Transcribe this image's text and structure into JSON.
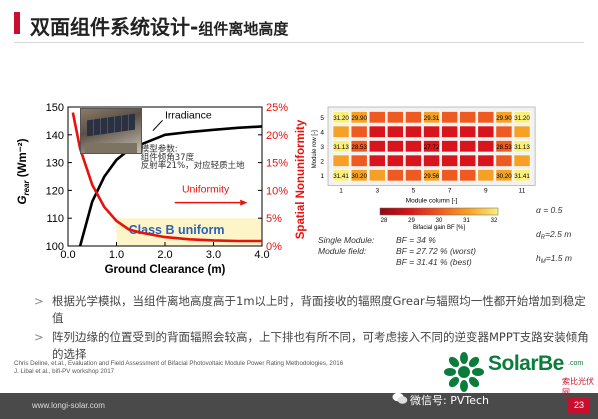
{
  "slide": {
    "title_main": "双面组件系统设计-",
    "title_sub": "组件离地高度",
    "footer_url": "www.longi-solar.com",
    "page_number": "23",
    "accent_color": "#c8102e"
  },
  "left_chart": {
    "y_label": "G",
    "y_label_sub": "rear",
    "y_label_unit": " (Wm⁻²)",
    "y2_label": "Spatial Nonuniformity",
    "x_label": "Ground Clearance (m)",
    "y_ticks": [
      "100",
      "110",
      "120",
      "130",
      "140",
      "150"
    ],
    "y2_ticks": [
      "0%",
      "5%",
      "10%",
      "15%",
      "20%",
      "25%"
    ],
    "x_ticks": [
      "0.0",
      "1.0",
      "2.0",
      "3.0",
      "4.0"
    ],
    "irradiance_label": "Irradiance",
    "uniformity_label": "Uniformity",
    "class_label": "Class B uniform",
    "param_title": "模型参数:",
    "param_1": "组件倾角37度",
    "param_2": "反射率21%，对应轻质土地",
    "irradiance_color": "#000000",
    "uniformity_color": "#e8120c",
    "class_band_color": "#fdf5c8"
  },
  "chart_data": [
    {
      "type": "line",
      "title": "",
      "xlabel": "Ground Clearance (m)",
      "ylabel": "Grear (Wm⁻²)",
      "y2label": "Spatial Nonuniformity",
      "xlim": [
        0,
        4
      ],
      "ylim": [
        100,
        150
      ],
      "y2lim": [
        0,
        25
      ],
      "series": [
        {
          "name": "Irradiance",
          "axis": "left",
          "x": [
            0.25,
            0.5,
            0.75,
            1.0,
            1.25,
            1.5,
            2.0,
            2.5,
            3.0,
            3.5,
            4.0
          ],
          "y": [
            100.0,
            116.0,
            125.0,
            131.0,
            134.5,
            136.5,
            140.0,
            141.0,
            141.8,
            142.5,
            143.0
          ]
        },
        {
          "name": "Uniformity",
          "axis": "right",
          "x": [
            0.1,
            0.25,
            0.5,
            0.75,
            1.0,
            1.25,
            1.5,
            2.0,
            2.5,
            3.0,
            3.5,
            4.0
          ],
          "y": [
            24.0,
            17.5,
            11.0,
            7.0,
            4.5,
            3.0,
            2.4,
            1.6,
            1.2,
            1.0,
            0.9,
            0.9
          ]
        }
      ]
    },
    {
      "type": "heatmap",
      "title": "",
      "xlabel": "Module column [-]",
      "ylabel": "Module row [-]",
      "x_ticks": [
        "1",
        "3",
        "5",
        "7",
        "9",
        "11"
      ],
      "rows": [
        "5",
        "4",
        "3",
        "2",
        "1"
      ],
      "colorbar_label": "Bifacial gain BF [%]",
      "colorbar_ticks": [
        "28",
        "29",
        "30",
        "31",
        "32"
      ],
      "values": [
        [
          31.2,
          29.9,
          29.0,
          28.6,
          28.6,
          29.31,
          28.6,
          28.6,
          29.0,
          29.9,
          31.2
        ],
        [
          30.0,
          28.6,
          28.1,
          27.9,
          27.9,
          27.9,
          27.9,
          27.9,
          28.1,
          28.6,
          30.0
        ],
        [
          31.13,
          28.53,
          27.9,
          27.8,
          27.8,
          27.72,
          27.8,
          27.8,
          27.9,
          28.53,
          31.13
        ],
        [
          30.0,
          28.6,
          28.1,
          27.9,
          27.9,
          27.9,
          27.9,
          27.9,
          28.1,
          28.6,
          30.0
        ],
        [
          31.41,
          30.2,
          29.3,
          28.8,
          28.8,
          29.56,
          28.8,
          28.8,
          29.3,
          30.2,
          31.41
        ]
      ],
      "labeled_cells": [
        {
          "row": 0,
          "col": 0,
          "text": "31.20"
        },
        {
          "row": 0,
          "col": 1,
          "text": "29.90"
        },
        {
          "row": 0,
          "col": 5,
          "text": "29.31"
        },
        {
          "row": 0,
          "col": 9,
          "text": "29.90"
        },
        {
          "row": 0,
          "col": 10,
          "text": "31.20"
        },
        {
          "row": 2,
          "col": 0,
          "text": "31.13"
        },
        {
          "row": 2,
          "col": 1,
          "text": "28.53"
        },
        {
          "row": 2,
          "col": 5,
          "text": "27.72"
        },
        {
          "row": 2,
          "col": 9,
          "text": "28.53"
        },
        {
          "row": 2,
          "col": 10,
          "text": "31.13"
        },
        {
          "row": 4,
          "col": 0,
          "text": "31.41"
        },
        {
          "row": 4,
          "col": 1,
          "text": "30.20"
        },
        {
          "row": 4,
          "col": 5,
          "text": "29.56"
        },
        {
          "row": 4,
          "col": 9,
          "text": "30.20"
        },
        {
          "row": 4,
          "col": 10,
          "text": "31.41"
        }
      ]
    }
  ],
  "right_chart": {
    "ylabel": "Module row [-]",
    "xlabel": "Module column [-]",
    "colorbar_label": "Bifacial gain BF [%]",
    "colorbar_ticks": [
      "28",
      "29",
      "30",
      "31",
      "32"
    ],
    "x_ticks": [
      "1",
      "3",
      "5",
      "7",
      "9",
      "11"
    ],
    "row_ticks": [
      "5",
      "4",
      "3",
      "2",
      "1"
    ],
    "single_module_label": "Single Module:",
    "single_module_value": "BF = 34 %",
    "module_field_label": "Module field:",
    "module_field_worst": "BF = 27.72 % (worst)",
    "module_field_best": "BF = 31.41 % (best)",
    "alpha_label": "α = 0.5",
    "dr_label": "d",
    "dr_sub": "R",
    "dr_value": "=2.5 m",
    "hm_label": "h",
    "hm_sub": "M",
    "hm_value": "=1.5 m"
  },
  "notes": [
    "根据光学模拟，当组件离地高度高于1m以上时，背面接收的辐照度Grear与辐照均一性都开始增加到稳定值",
    "阵列边缘的位置受到的背面辐照会较高，上下排也有所不同，可考虑接入不同的逆变器MPPT支路安装倾角的选择"
  ],
  "references": [
    "Chris Deline, et.al., Evaluation and Field Assessment of Bifacial Photovoltaic Module Power Rating Methodologies, 2016",
    "J. Libal et al., bifi-PV workshop 2017"
  ],
  "watermark": {
    "brand": "SolarBe",
    "com": ".com",
    "cn": "索比光伏网",
    "wechat": "微信号: PVTech"
  }
}
